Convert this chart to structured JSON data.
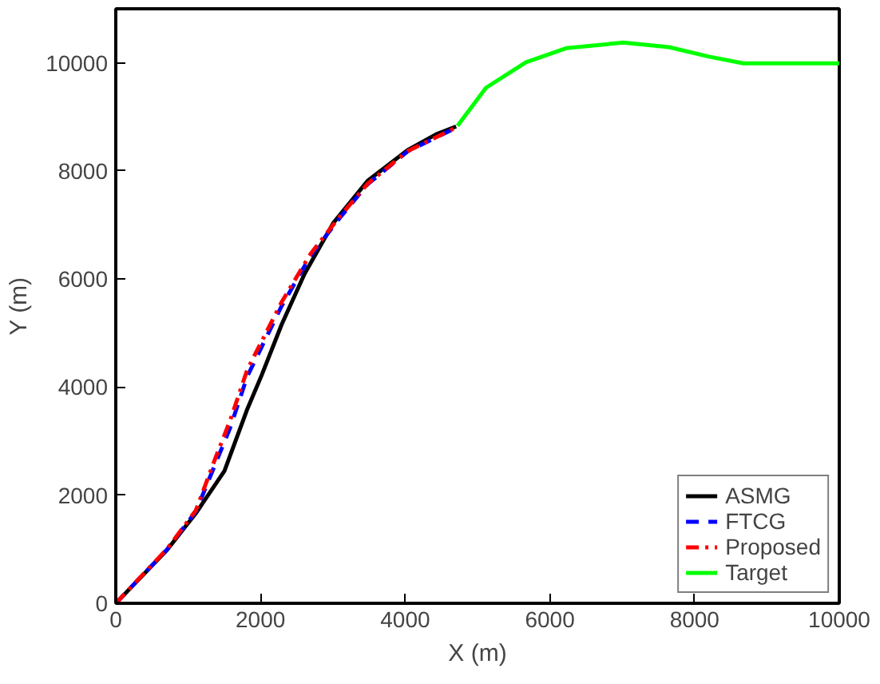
{
  "chart_data": {
    "type": "line",
    "xlabel": "X (m)",
    "ylabel": "Y (m)",
    "xlim": [
      0,
      10000
    ],
    "ylim": [
      0,
      11000
    ],
    "xticks": [
      0,
      2000,
      4000,
      6000,
      8000,
      10000
    ],
    "yticks": [
      0,
      2000,
      4000,
      6000,
      8000,
      10000
    ],
    "grid": false,
    "legend": "bottom right",
    "series": [
      {
        "name": "ASMG",
        "color": "#000000",
        "line_style": "solid",
        "x": [
          0,
          711,
          1107,
          1502,
          1818,
          2016,
          2292,
          2609,
          3004,
          3478,
          4032,
          4427,
          4704
        ],
        "values": [
          0,
          990,
          1667,
          2448,
          3594,
          4219,
          5156,
          6094,
          7031,
          7813,
          8385,
          8677,
          8823
        ]
      },
      {
        "name": "FTCG",
        "color": "#0000ff",
        "line_style": "dashed",
        "x": [
          0,
          711,
          1107,
          1383,
          1581,
          1818,
          2292,
          2688,
          3083,
          3478,
          4032,
          4704
        ],
        "values": [
          0,
          1000,
          1700,
          2600,
          3250,
          4200,
          5500,
          6420,
          7110,
          7750,
          8360,
          8800
        ]
      },
      {
        "name": "Proposed",
        "color": "#ff0000",
        "line_style": "dashdot",
        "x": [
          0,
          711,
          1107,
          1383,
          1581,
          1818,
          2292,
          2688,
          3083,
          3478,
          4032,
          4704
        ],
        "values": [
          0,
          1010,
          1719,
          2708,
          3385,
          4323,
          5573,
          6458,
          7135,
          7760,
          8365,
          8802
        ]
      },
      {
        "name": "Target",
        "color": "#00ff00",
        "line_style": "solid",
        "x": [
          4723,
          5118,
          5671,
          6225,
          7014,
          7646,
          8199,
          8673,
          10000
        ],
        "values": [
          8834,
          9540,
          10010,
          10271,
          10375,
          10290,
          10115,
          9990,
          9990
        ]
      }
    ]
  }
}
